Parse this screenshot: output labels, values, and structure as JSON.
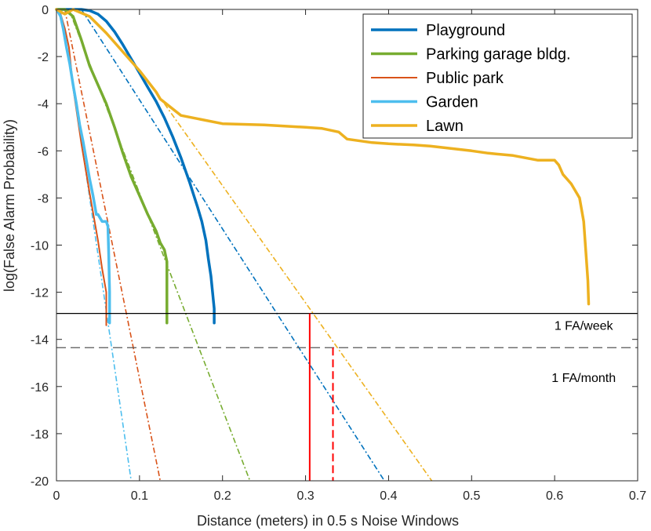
{
  "chart_data": {
    "type": "line",
    "title": "",
    "xlabel": "Distance (meters) in 0.5 s Noise Windows",
    "ylabel": "log(False Alarm Probability)",
    "xlim": [
      0,
      0.7
    ],
    "ylim": [
      -20,
      0
    ],
    "xticks": [
      0,
      0.1,
      0.2,
      0.3,
      0.4,
      0.5,
      0.6,
      0.7
    ],
    "xtick_labels": [
      "0",
      "0.1",
      "0.2",
      "0.3",
      "0.4",
      "0.5",
      "0.6",
      "0.7"
    ],
    "yticks": [
      0,
      -2,
      -4,
      -6,
      -8,
      -10,
      -12,
      -14,
      -16,
      -18,
      -20
    ],
    "ytick_labels": [
      "0",
      "-2",
      "-4",
      "-6",
      "-8",
      "-10",
      "-12",
      "-14",
      "-16",
      "-18",
      "-20"
    ],
    "grid": false,
    "legend_position": "top-right",
    "series": [
      {
        "name": "Playground",
        "color": "#0072BD",
        "width": 3.5,
        "x": [
          0.0,
          0.03,
          0.04,
          0.05,
          0.06,
          0.07,
          0.08,
          0.09,
          0.1,
          0.11,
          0.12,
          0.13,
          0.14,
          0.15,
          0.16,
          0.17,
          0.175,
          0.18,
          0.183,
          0.186,
          0.188,
          0.19,
          0.19
        ],
        "y": [
          0.0,
          0.0,
          -0.05,
          -0.2,
          -0.5,
          -0.95,
          -1.5,
          -2.1,
          -2.7,
          -3.3,
          -3.9,
          -4.6,
          -5.4,
          -6.3,
          -7.3,
          -8.4,
          -9.0,
          -9.8,
          -10.6,
          -11.3,
          -12.0,
          -12.7,
          -13.3
        ],
        "extrapolation": {
          "x": [
            0.03,
            0.395
          ],
          "y": [
            0.0,
            -20.0
          ]
        }
      },
      {
        "name": "Parking garage bldg.",
        "color": "#77AC30",
        "width": 3.5,
        "x": [
          0.0,
          0.01,
          0.02,
          0.03,
          0.04,
          0.05,
          0.06,
          0.07,
          0.08,
          0.09,
          0.1,
          0.11,
          0.12,
          0.125,
          0.13,
          0.133,
          0.133,
          0.133
        ],
        "y": [
          0.0,
          0.0,
          -0.3,
          -1.3,
          -2.4,
          -3.2,
          -4.0,
          -5.0,
          -6.1,
          -7.1,
          -7.9,
          -8.7,
          -9.4,
          -9.9,
          -10.2,
          -10.7,
          -12.0,
          -13.3
        ],
        "extrapolation": {
          "x": [
            0.015,
            0.233
          ],
          "y": [
            0.0,
            -20.0
          ]
        }
      },
      {
        "name": "Public park",
        "color": "#D95319",
        "width": 2,
        "x": [
          0.0,
          0.005,
          0.01,
          0.015,
          0.02,
          0.03,
          0.04,
          0.05,
          0.055,
          0.06,
          0.06
        ],
        "y": [
          0.0,
          -0.2,
          -0.8,
          -1.6,
          -3.3,
          -5.7,
          -7.8,
          -9.8,
          -11.0,
          -12.0,
          -13.4
        ],
        "extrapolation": {
          "x": [
            0.01,
            0.125
          ],
          "y": [
            0.0,
            -20.0
          ]
        }
      },
      {
        "name": "Garden",
        "color": "#4DBEEE",
        "width": 3.5,
        "x": [
          0.0,
          0.002,
          0.005,
          0.008,
          0.012,
          0.016,
          0.02,
          0.024,
          0.028,
          0.032,
          0.036,
          0.04,
          0.044,
          0.046,
          0.048,
          0.05,
          0.055,
          0.06,
          0.062,
          0.063,
          0.064,
          0.064
        ],
        "y": [
          0.0,
          -0.1,
          -0.3,
          -0.8,
          -1.6,
          -2.3,
          -3.2,
          -4.0,
          -4.9,
          -5.6,
          -6.4,
          -7.2,
          -7.9,
          -8.3,
          -8.7,
          -8.7,
          -9.0,
          -9.0,
          -9.2,
          -10.5,
          -12.0,
          -13.3
        ],
        "extrapolation": {
          "x": [
            0.02,
            0.09
          ],
          "y": [
            -3.2,
            -20.0
          ]
        }
      },
      {
        "name": "Lawn",
        "color": "#EDB120",
        "width": 3.5,
        "x": [
          0.0,
          0.01,
          0.02,
          0.04,
          0.06,
          0.08,
          0.1,
          0.12,
          0.125,
          0.15,
          0.2,
          0.25,
          0.3,
          0.32,
          0.34,
          0.35,
          0.38,
          0.4,
          0.43,
          0.45,
          0.5,
          0.52,
          0.55,
          0.58,
          0.6,
          0.605,
          0.61,
          0.62,
          0.63,
          0.635,
          0.638,
          0.64,
          0.641
        ],
        "y": [
          0.0,
          -0.2,
          0.0,
          -0.3,
          -1.0,
          -1.8,
          -2.6,
          -3.5,
          -3.8,
          -4.5,
          -4.85,
          -4.9,
          -5.0,
          -5.05,
          -5.2,
          -5.5,
          -5.65,
          -5.7,
          -5.75,
          -5.8,
          -6.0,
          -6.1,
          -6.2,
          -6.4,
          -6.4,
          -6.6,
          -7.0,
          -7.4,
          -8.0,
          -9.0,
          -10.5,
          -11.5,
          -12.5
        ],
        "extrapolation": {
          "x": [
            0.13,
            0.452
          ],
          "y": [
            -4.0,
            -20.0
          ]
        }
      }
    ],
    "reference_lines": [
      {
        "name": "1 FA/week",
        "y": -12.9,
        "style": "solid",
        "color": "#000000",
        "drop_x": 0.305,
        "drop_color": "#FF0000",
        "drop_style": "solid"
      },
      {
        "name": "1 FA/month",
        "y": -14.35,
        "style": "dashed",
        "color": "#000000",
        "drop_x": 0.333,
        "drop_color": "#FF0000",
        "drop_style": "dashed"
      }
    ],
    "annotations": [
      {
        "text": "1 FA/week",
        "x": 0.635,
        "y": -13.6
      },
      {
        "text": "1 FA/month",
        "x": 0.635,
        "y": -15.8
      }
    ]
  }
}
